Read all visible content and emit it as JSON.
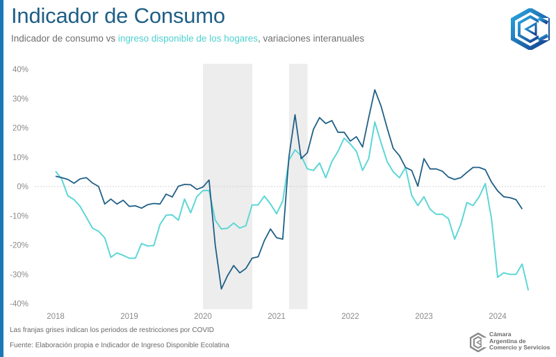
{
  "header": {
    "title": "Indicador de Consumo",
    "subtitle_pre": "Indicador de consumo vs ",
    "subtitle_highlight": "ingreso disponible de los hogares",
    "subtitle_post": ", variaciones interanuales"
  },
  "colors": {
    "accent": "#1a78b8",
    "title": "#1f5f86",
    "consumo": "#1f5f86",
    "ingreso": "#5ed6d6",
    "covid_band": "#ededed",
    "zero_line": "#cfcfcf"
  },
  "footer": {
    "note": "Las franjas grises indican los periodos de restricciones por COVID",
    "source": "Fuente: Elaboración propia e Indicador de Ingreso Disponible Ecolatina",
    "brand_line1": "Cámara",
    "brand_line2": "Argentina de",
    "brand_line3": "Comercio y Servicios"
  },
  "icons": {
    "logo": "cac-hexagon-logo-icon",
    "brand": "cac-hexagon-small-icon"
  },
  "chart_data": {
    "type": "line",
    "title": "Indicador de Consumo",
    "subtitle": "Indicador de consumo vs ingreso disponible de los hogares, variaciones interanuales",
    "xlabel": "",
    "ylabel": "",
    "x_start": "2018-01",
    "x_frequency": "monthly",
    "xlim": [
      2018.0,
      2024.42
    ],
    "ylim": [
      -40,
      40
    ],
    "yticks": [
      40,
      30,
      20,
      10,
      0,
      -10,
      -20,
      -30,
      -40
    ],
    "ytick_labels": [
      "40%",
      "30%",
      "20%",
      "10%",
      "0%",
      "-10%",
      "-20%",
      "-30%",
      "-40%"
    ],
    "xticks": [
      2018,
      2019,
      2020,
      2021,
      2022,
      2023,
      2024
    ],
    "xtick_labels": [
      "2018",
      "2019",
      "2020",
      "2021",
      "2022",
      "2023",
      "2024"
    ],
    "grid": false,
    "zero_line": true,
    "legend": "none (series identified by subtitle colors)",
    "shaded_regions": [
      {
        "label": "COVID restrictions",
        "from": 2020.0,
        "to": 2020.67
      },
      {
        "label": "COVID restrictions",
        "from": 2021.17,
        "to": 2021.42
      }
    ],
    "series": [
      {
        "name": "Indicador de consumo",
        "color": "#1f5f86",
        "values": [
          3.5,
          3.0,
          2.4,
          1.1,
          2.6,
          3.0,
          1.2,
          0.0,
          -6.0,
          -4.3,
          -6.0,
          -4.7,
          -6.8,
          -6.6,
          -7.4,
          -6.2,
          -5.8,
          -6.0,
          -2.6,
          -3.6,
          0.1,
          0.7,
          0.6,
          -1.0,
          -0.2,
          2.2,
          -20.0,
          -35.0,
          -30.5,
          -27.0,
          -29.5,
          -28.0,
          -24.5,
          -24.0,
          -18.5,
          -14.5,
          -17.5,
          -18.0,
          10.0,
          24.5,
          9.5,
          11.5,
          19.5,
          23.5,
          21.5,
          22.5,
          18.5,
          18.5,
          15.5,
          17.0,
          13.5,
          23.5,
          33.0,
          27.5,
          20.0,
          13.0,
          10.5,
          6.5,
          5.5,
          0.1,
          9.5,
          6.0,
          6.0,
          5.2,
          3.2,
          2.4,
          3.0,
          4.8,
          6.5,
          6.5,
          5.7,
          1.5,
          -1.5,
          -3.5,
          -3.8,
          -4.5,
          -7.7
        ]
      },
      {
        "name": "Ingreso disponible de los hogares",
        "color": "#5ed6d6",
        "values": [
          5.2,
          2.5,
          -3.2,
          -4.5,
          -6.8,
          -10.5,
          -14.2,
          -15.3,
          -17.5,
          -24.2,
          -22.7,
          -23.5,
          -24.5,
          -24.5,
          -19.5,
          -20.3,
          -20.2,
          -13.0,
          -9.8,
          -9.7,
          -11.5,
          -4.3,
          -9.0,
          -3.5,
          -1.4,
          -1.4,
          -11.5,
          -14.5,
          -14.3,
          -12.5,
          -14.2,
          -13.4,
          -6.3,
          -6.3,
          -3.3,
          -6.0,
          -9.3,
          -5.0,
          9.0,
          12.5,
          10.5,
          6.0,
          5.5,
          8.0,
          3.0,
          8.5,
          12.0,
          16.5,
          14.5,
          12.0,
          5.5,
          9.5,
          22.0,
          15.0,
          8.5,
          5.0,
          3.0,
          6.5,
          -3.0,
          -6.5,
          -3.5,
          -7.8,
          -9.5,
          -9.5,
          -11.0,
          -18.0,
          -13.0,
          -5.5,
          -6.5,
          -3.5,
          1.0,
          -11.0,
          -31.0,
          -29.5,
          -30.0,
          -30.0,
          -26.5,
          -35.5
        ]
      }
    ]
  }
}
